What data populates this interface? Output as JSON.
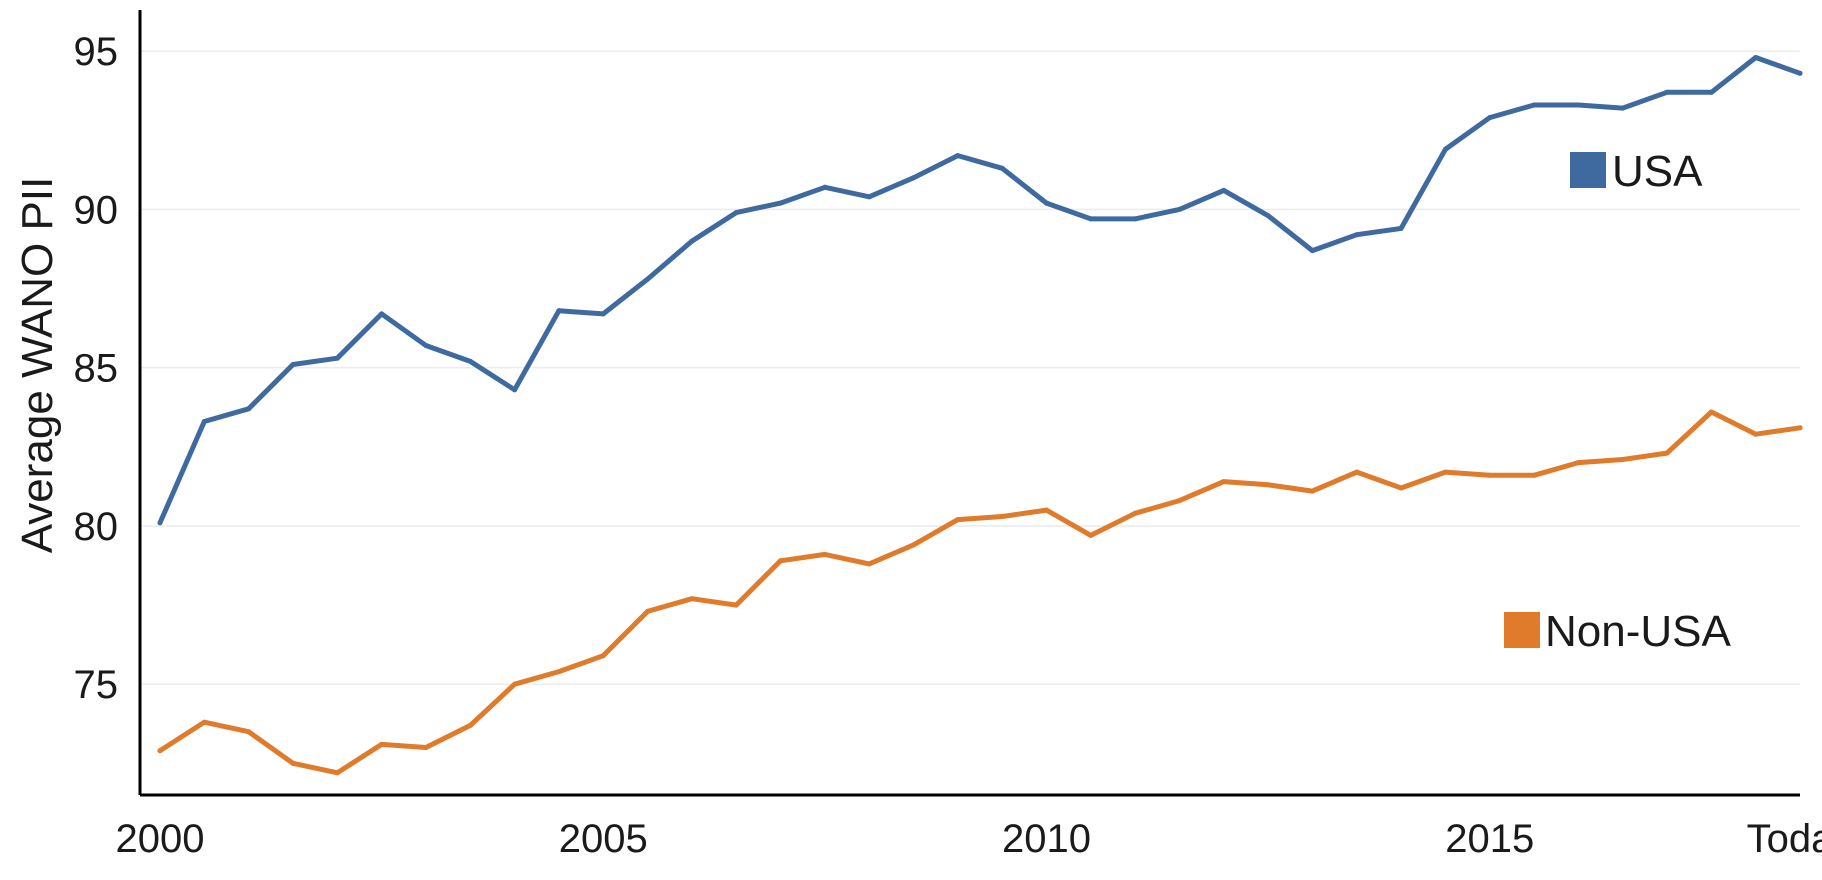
{
  "chart_data": {
    "type": "line",
    "title": "",
    "xlabel": "",
    "ylabel": "Average WANO PII",
    "xlim": [
      2000,
      2018.5
    ],
    "ylim": [
      71.5,
      96.3
    ],
    "grid": true,
    "x_ticks": [
      {
        "value": 2000,
        "label": "2000"
      },
      {
        "value": 2005,
        "label": "2005"
      },
      {
        "value": 2010,
        "label": "2010"
      },
      {
        "value": 2015,
        "label": "2015"
      },
      {
        "value": 2018.5,
        "label": "Today"
      }
    ],
    "y_ticks": [
      {
        "value": 75,
        "label": "75"
      },
      {
        "value": 80,
        "label": "80"
      },
      {
        "value": 85,
        "label": "85"
      },
      {
        "value": 90,
        "label": "90"
      },
      {
        "value": 95,
        "label": "95"
      }
    ],
    "x": [
      2000.0,
      2000.5,
      2001.0,
      2001.5,
      2002.0,
      2002.5,
      2003.0,
      2003.5,
      2004.0,
      2004.5,
      2005.0,
      2005.5,
      2006.0,
      2006.5,
      2007.0,
      2007.5,
      2008.0,
      2008.5,
      2009.0,
      2009.5,
      2010.0,
      2010.5,
      2011.0,
      2011.5,
      2012.0,
      2012.5,
      2013.0,
      2013.5,
      2014.0,
      2014.5,
      2015.0,
      2015.5,
      2016.0,
      2016.5,
      2017.0,
      2017.5,
      2018.0,
      2018.5
    ],
    "legend": "inside-right",
    "series": [
      {
        "name": "USA",
        "color": "#3f6aa0",
        "values": [
          80.1,
          83.3,
          83.7,
          85.1,
          85.3,
          86.7,
          85.7,
          85.2,
          84.3,
          86.8,
          86.7,
          87.8,
          89.0,
          89.9,
          90.2,
          90.7,
          90.4,
          91.0,
          91.7,
          91.3,
          90.2,
          89.7,
          89.7,
          90.0,
          90.6,
          89.8,
          88.7,
          89.2,
          89.4,
          91.9,
          92.9,
          93.3,
          93.3,
          93.2,
          93.7,
          93.7,
          94.8,
          94.3
        ]
      },
      {
        "name": "Non-USA",
        "color": "#e07b2c",
        "values": [
          72.9,
          73.8,
          73.5,
          72.5,
          72.2,
          73.1,
          73.0,
          73.7,
          75.0,
          75.4,
          75.9,
          77.3,
          77.7,
          77.5,
          78.9,
          79.1,
          78.8,
          79.4,
          80.2,
          80.3,
          80.5,
          79.7,
          80.4,
          80.8,
          81.4,
          81.3,
          81.1,
          81.7,
          81.2,
          81.7,
          81.6,
          81.6,
          82.0,
          82.1,
          82.3,
          83.6,
          82.9,
          83.1
        ]
      }
    ]
  }
}
